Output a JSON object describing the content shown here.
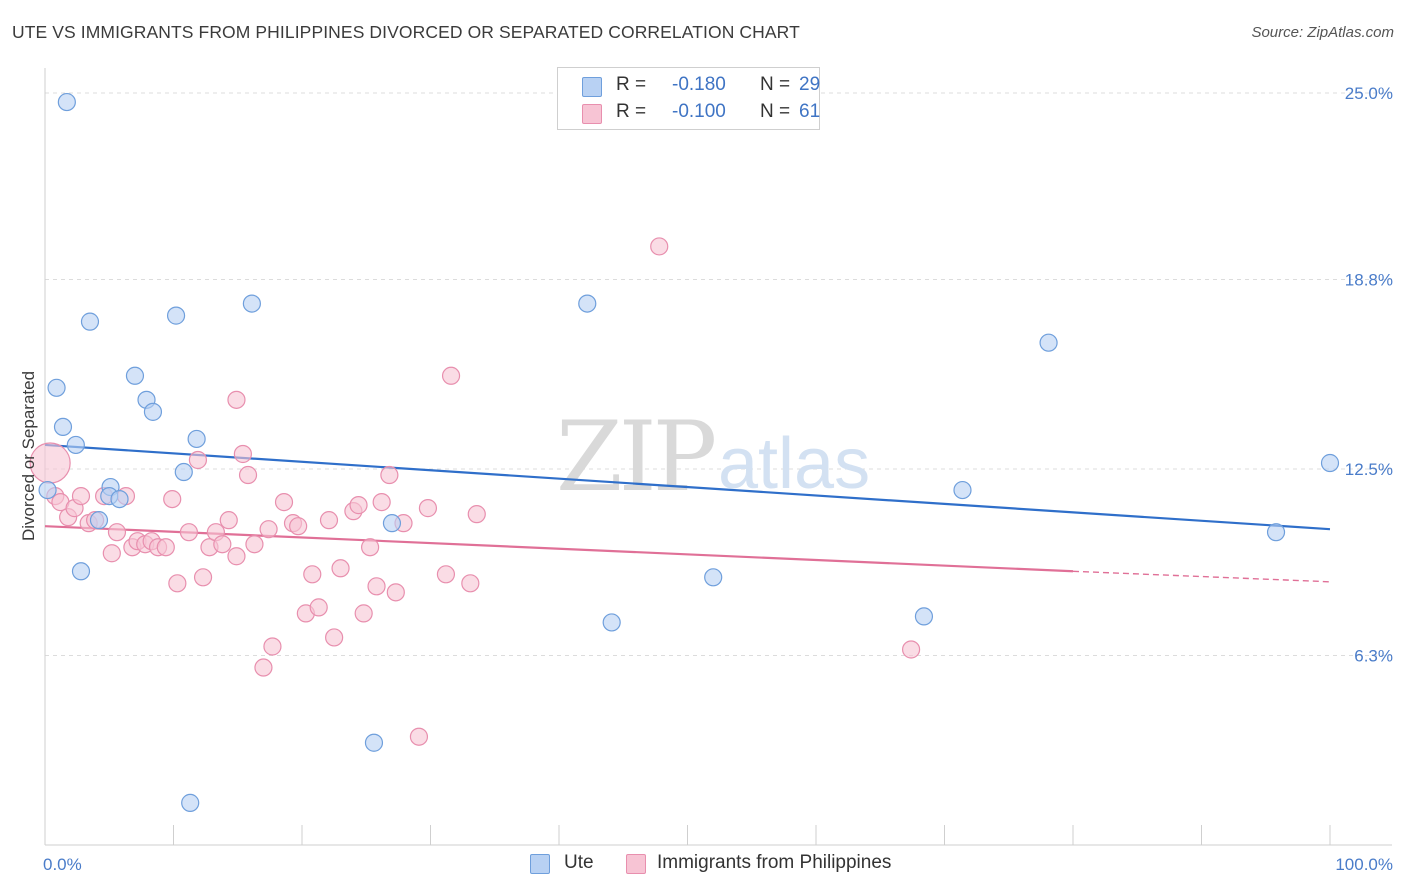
{
  "title": "UTE VS IMMIGRANTS FROM PHILIPPINES DIVORCED OR SEPARATED CORRELATION CHART",
  "source": "Source: ZipAtlas.com",
  "watermark": {
    "zip": "ZIP",
    "atlas": "atlas"
  },
  "legend": {
    "rows": [
      {
        "r_label": "R =",
        "r_value": "-0.180",
        "n_label": "N =",
        "n_value": "29"
      },
      {
        "r_label": "R =",
        "r_value": "-0.100",
        "n_label": "N =",
        "n_value": "61"
      }
    ]
  },
  "bottom_legend": [
    "Ute",
    "Immigrants from Philippines"
  ],
  "colors": {
    "ute_fill": "#b8d1f3",
    "ute_stroke": "#6f9fdc",
    "ute_line": "#2f6fca",
    "phil_fill": "#f7c4d4",
    "phil_stroke": "#e88fae",
    "phil_line": "#e07097",
    "grid": "#dcdcdc",
    "tick_text": "#4a7cc9"
  },
  "chart_data": {
    "type": "scatter",
    "title": "UTE VS IMMIGRANTS FROM PHILIPPINES DIVORCED OR SEPARATED CORRELATION CHART",
    "xlabel": "",
    "ylabel": "Divorced or Separated",
    "xlim": [
      0,
      100
    ],
    "ylim": [
      0,
      25.5
    ],
    "x_tick_labels": [
      "0.0%",
      "100.0%"
    ],
    "y_ticks": [
      6.3,
      12.5,
      18.8,
      25.0
    ],
    "y_tick_labels": [
      "6.3%",
      "12.5%",
      "18.8%",
      "25.0%"
    ],
    "grid": true,
    "legend_position": "top-center",
    "series": [
      {
        "name": "Ute",
        "r": -0.18,
        "n": 29,
        "trend": {
          "x": [
            0,
            100
          ],
          "y": [
            13.3,
            10.5
          ]
        },
        "points": [
          [
            1.7,
            24.7
          ],
          [
            0.2,
            11.8
          ],
          [
            0.9,
            15.2
          ],
          [
            1.4,
            13.9
          ],
          [
            2.4,
            13.3
          ],
          [
            2.8,
            9.1
          ],
          [
            3.5,
            17.4
          ],
          [
            4.2,
            10.8
          ],
          [
            5.1,
            11.9
          ],
          [
            5.0,
            11.6
          ],
          [
            5.8,
            11.5
          ],
          [
            7.0,
            15.6
          ],
          [
            7.9,
            14.8
          ],
          [
            8.4,
            14.4
          ],
          [
            10.2,
            17.6
          ],
          [
            10.8,
            12.4
          ],
          [
            11.8,
            13.5
          ],
          [
            11.3,
            1.4
          ],
          [
            16.1,
            18.0
          ],
          [
            25.6,
            3.4
          ],
          [
            27.0,
            10.7
          ],
          [
            42.2,
            18.0
          ],
          [
            44.1,
            7.4
          ],
          [
            52.0,
            8.9
          ],
          [
            68.4,
            7.6
          ],
          [
            71.4,
            11.8
          ],
          [
            78.1,
            16.7
          ],
          [
            95.8,
            10.4
          ],
          [
            100.0,
            12.7
          ]
        ]
      },
      {
        "name": "Immigrants from Philippines",
        "r": -0.1,
        "n": 61,
        "trend": {
          "x": [
            0,
            80
          ],
          "y": [
            10.6,
            9.1
          ]
        },
        "trend_dashed": {
          "x": [
            80,
            100
          ],
          "y": [
            9.1,
            8.75
          ]
        },
        "points": [
          [
            0.4,
            12.7
          ],
          [
            0.8,
            11.6
          ],
          [
            1.2,
            11.4
          ],
          [
            1.8,
            10.9
          ],
          [
            2.3,
            11.2
          ],
          [
            2.8,
            11.6
          ],
          [
            3.4,
            10.7
          ],
          [
            3.9,
            10.8
          ],
          [
            4.6,
            11.6
          ],
          [
            5.2,
            9.7
          ],
          [
            5.6,
            10.4
          ],
          [
            6.3,
            11.6
          ],
          [
            6.8,
            9.9
          ],
          [
            7.2,
            10.1
          ],
          [
            7.8,
            10.0
          ],
          [
            8.3,
            10.1
          ],
          [
            8.8,
            9.9
          ],
          [
            9.4,
            9.9
          ],
          [
            9.9,
            11.5
          ],
          [
            10.3,
            8.7
          ],
          [
            11.2,
            10.4
          ],
          [
            11.9,
            12.8
          ],
          [
            12.3,
            8.9
          ],
          [
            12.8,
            9.9
          ],
          [
            13.3,
            10.4
          ],
          [
            13.8,
            10.0
          ],
          [
            14.3,
            10.8
          ],
          [
            14.9,
            9.6
          ],
          [
            15.4,
            13.0
          ],
          [
            15.8,
            12.3
          ],
          [
            16.3,
            10.0
          ],
          [
            17.0,
            5.9
          ],
          [
            17.4,
            10.5
          ],
          [
            17.7,
            6.6
          ],
          [
            18.6,
            11.4
          ],
          [
            19.3,
            10.7
          ],
          [
            19.7,
            10.6
          ],
          [
            20.3,
            7.7
          ],
          [
            20.8,
            9.0
          ],
          [
            21.3,
            7.9
          ],
          [
            22.1,
            10.8
          ],
          [
            22.5,
            6.9
          ],
          [
            23.0,
            9.2
          ],
          [
            24.0,
            11.1
          ],
          [
            24.4,
            11.3
          ],
          [
            24.8,
            7.7
          ],
          [
            25.3,
            9.9
          ],
          [
            25.8,
            8.6
          ],
          [
            26.2,
            11.4
          ],
          [
            26.8,
            12.3
          ],
          [
            27.3,
            8.4
          ],
          [
            27.9,
            10.7
          ],
          [
            29.1,
            3.6
          ],
          [
            29.8,
            11.2
          ],
          [
            31.2,
            9.0
          ],
          [
            31.6,
            15.6
          ],
          [
            33.1,
            8.7
          ],
          [
            33.6,
            11.0
          ],
          [
            47.8,
            19.9
          ],
          [
            14.9,
            14.8
          ],
          [
            67.4,
            6.5
          ]
        ]
      }
    ]
  }
}
